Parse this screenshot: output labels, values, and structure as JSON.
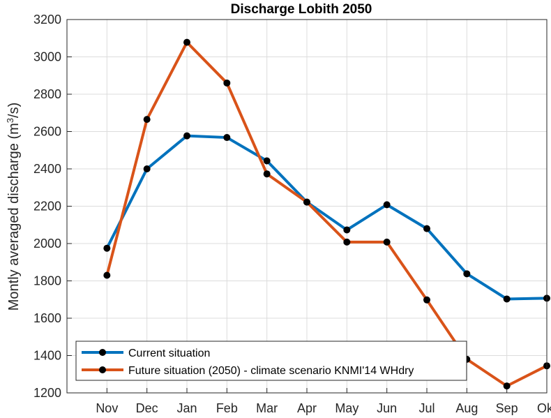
{
  "chart_data": {
    "type": "line",
    "title": "Discharge Lobith 2050",
    "xlabel": "",
    "ylabel_main": "Montly averaged discharge (m",
    "ylabel_sup": "3",
    "ylabel_end": "/s)",
    "categories": [
      "Nov",
      "Dec",
      "Jan",
      "Feb",
      "Mar",
      "Apr",
      "May",
      "Jun",
      "Jul",
      "Aug",
      "Sep",
      "Okt"
    ],
    "xlim": [
      0,
      12
    ],
    "ylim": [
      1200,
      3200
    ],
    "yticks": [
      1200,
      1400,
      1600,
      1800,
      2000,
      2200,
      2400,
      2600,
      2800,
      3000,
      3200
    ],
    "grid": true,
    "legend_position": "bottom-left",
    "series": [
      {
        "name": "Current situation",
        "color": "#0072BD",
        "values": [
          1975,
          2400,
          2577,
          2568,
          2443,
          2222,
          2073,
          2208,
          2080,
          1838,
          1703,
          1707
        ]
      },
      {
        "name": "Future situation (2050) - climate scenario KNMI'14 WHdry",
        "color": "#D95319",
        "values": [
          1830,
          2665,
          3078,
          2860,
          2373,
          2222,
          2008,
          2008,
          1698,
          1380,
          1237,
          1345
        ]
      }
    ],
    "marker_color": "#000000"
  }
}
